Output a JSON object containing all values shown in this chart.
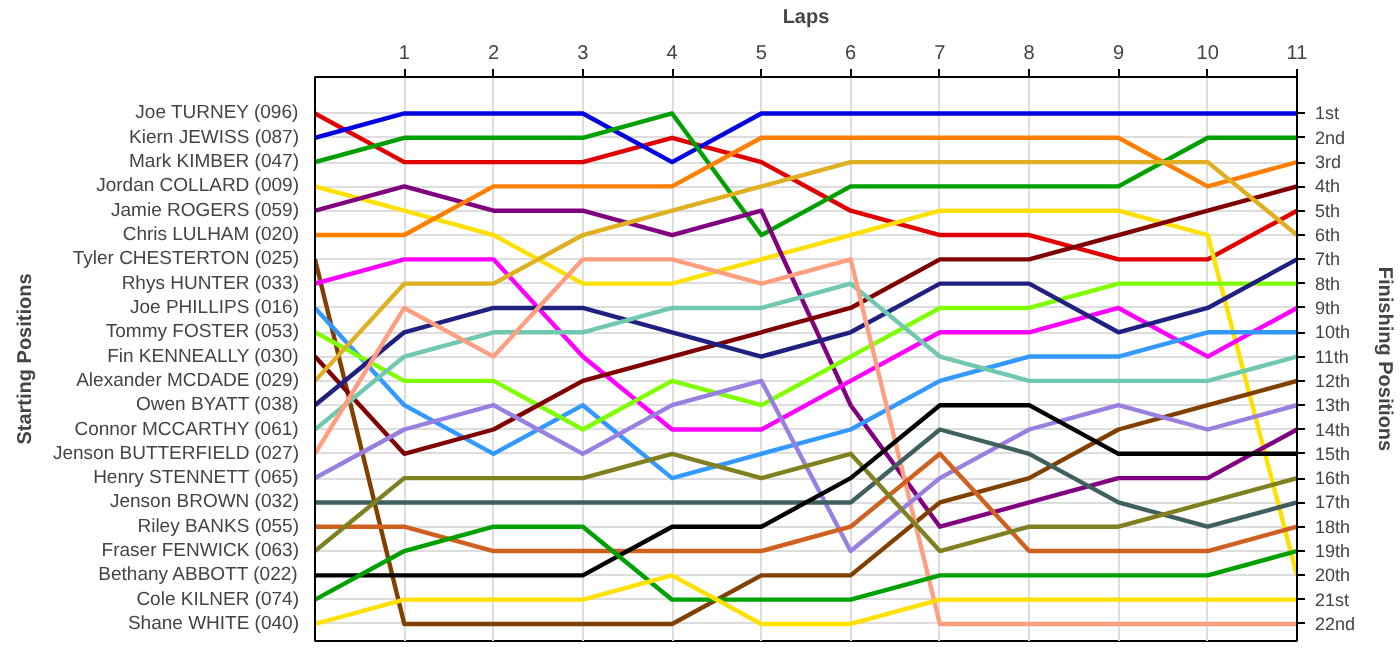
{
  "chart_data": {
    "type": "line",
    "xlabel": "Laps",
    "ylabel": "Finishing Positions",
    "annotations": [
      "Starting Positions"
    ],
    "x": [
      0,
      1,
      2,
      3,
      4,
      5,
      6,
      7,
      8,
      9,
      10,
      11
    ],
    "xlim": [
      0,
      11
    ],
    "xticks": [
      1,
      2,
      3,
      4,
      5,
      6,
      7,
      8,
      9,
      10,
      11
    ],
    "ylim": [
      22.7,
      -0.5
    ],
    "yticks": [
      {
        "value": 1,
        "label": "1st"
      },
      {
        "value": 2,
        "label": "2nd"
      },
      {
        "value": 3,
        "label": "3rd"
      },
      {
        "value": 4,
        "label": "4th"
      },
      {
        "value": 5,
        "label": "5th"
      },
      {
        "value": 6,
        "label": "6th"
      },
      {
        "value": 7,
        "label": "7th"
      },
      {
        "value": 8,
        "label": "8th"
      },
      {
        "value": 9,
        "label": "9th"
      },
      {
        "value": 10,
        "label": "10th"
      },
      {
        "value": 11,
        "label": "11th"
      },
      {
        "value": 12,
        "label": "12th"
      },
      {
        "value": 13,
        "label": "13th"
      },
      {
        "value": 14,
        "label": "14th"
      },
      {
        "value": 15,
        "label": "15th"
      },
      {
        "value": 16,
        "label": "16th"
      },
      {
        "value": 17,
        "label": "17th"
      },
      {
        "value": 18,
        "label": "18th"
      },
      {
        "value": 19,
        "label": "19th"
      },
      {
        "value": 20,
        "label": "20th"
      },
      {
        "value": 21,
        "label": "21st"
      },
      {
        "value": 22,
        "label": "22nd"
      }
    ],
    "grid": true,
    "marker": "none",
    "line_style": "solid",
    "series": [
      {
        "name": "Joe TURNEY (096)",
        "color": "#e00000",
        "values": [
          1,
          3,
          3,
          3,
          2,
          3,
          5,
          6,
          6,
          7,
          7,
          5
        ]
      },
      {
        "name": "Kiern JEWISS (087)",
        "color": "#0000e0",
        "values": [
          2,
          1,
          1,
          1,
          3,
          1,
          1,
          1,
          1,
          1,
          1,
          1
        ]
      },
      {
        "name": "Mark KIMBER (047)",
        "color": "#00a000",
        "values": [
          3,
          2,
          2,
          2,
          1,
          6,
          4,
          4,
          4,
          4,
          2,
          2
        ]
      },
      {
        "name": "Jordan COLLARD (009)",
        "color": "#ffe000",
        "values": [
          4,
          5,
          6,
          8,
          8,
          7,
          6,
          5,
          5,
          5,
          6,
          20
        ]
      },
      {
        "name": "Jamie ROGERS (059)",
        "color": "#800080",
        "values": [
          5,
          4,
          5,
          5,
          6,
          5,
          13,
          18,
          17,
          16,
          16,
          14
        ]
      },
      {
        "name": "Chris LULHAM (020)",
        "color": "#ff8000",
        "values": [
          6,
          6,
          4,
          4,
          4,
          2,
          2,
          2,
          2,
          2,
          4,
          3
        ]
      },
      {
        "name": "Tyler CHESTERTON (025)",
        "color": "#804000",
        "values": [
          7,
          22,
          22,
          22,
          22,
          20,
          20,
          17,
          16,
          14,
          13,
          12
        ]
      },
      {
        "name": "Rhys HUNTER (033)",
        "color": "#ff00ff",
        "values": [
          8,
          7,
          7,
          11,
          14,
          14,
          12,
          10,
          10,
          9,
          11,
          9
        ]
      },
      {
        "name": "Joe PHILLIPS (016)",
        "color": "#3399ff",
        "values": [
          9,
          13,
          15,
          13,
          16,
          15,
          14,
          12,
          11,
          11,
          10,
          10
        ]
      },
      {
        "name": "Tommy FOSTER (053)",
        "color": "#80ff00",
        "values": [
          10,
          12,
          12,
          14,
          12,
          13,
          11,
          9,
          9,
          8,
          8,
          8
        ]
      },
      {
        "name": "Fin KENNEALLY (030)",
        "color": "#800000",
        "values": [
          11,
          15,
          14,
          12,
          11,
          10,
          9,
          7,
          7,
          6,
          5,
          4
        ]
      },
      {
        "name": "Alexander MCDADE (029)",
        "color": "#e0b020",
        "values": [
          12,
          8,
          8,
          6,
          5,
          4,
          3,
          3,
          3,
          3,
          3,
          6
        ]
      },
      {
        "name": "Owen BYATT (038)",
        "color": "#202080",
        "values": [
          13,
          10,
          9,
          9,
          10,
          11,
          10,
          8,
          8,
          10,
          9,
          7
        ]
      },
      {
        "name": "Connor MCCARTHY (061)",
        "color": "#70c8b0",
        "values": [
          14,
          11,
          10,
          10,
          9,
          9,
          8,
          11,
          12,
          12,
          12,
          11
        ]
      },
      {
        "name": "Jenson BUTTERFIELD (027)",
        "color": "#ff9f80",
        "values": [
          15,
          9,
          11,
          7,
          7,
          8,
          7,
          22,
          22,
          22,
          22,
          22
        ]
      },
      {
        "name": "Henry STENNETT (065)",
        "color": "#9980e0",
        "values": [
          16,
          14,
          13,
          15,
          13,
          12,
          19,
          16,
          14,
          13,
          14,
          13
        ]
      },
      {
        "name": "Jenson BROWN (032)",
        "color": "#406060",
        "values": [
          17,
          17,
          17,
          17,
          17,
          17,
          17,
          14,
          15,
          17,
          18,
          17
        ]
      },
      {
        "name": "Riley BANKS (055)",
        "color": "#d06020",
        "values": [
          18,
          18,
          19,
          19,
          19,
          19,
          18,
          15,
          19,
          19,
          19,
          18
        ]
      },
      {
        "name": "Fraser FENWICK (063)",
        "color": "#808020",
        "values": [
          19,
          16,
          16,
          16,
          15,
          16,
          15,
          19,
          18,
          18,
          17,
          16
        ]
      },
      {
        "name": "Bethany ABBOTT (022)",
        "color": "#000000",
        "values": [
          20,
          20,
          20,
          20,
          18,
          18,
          16,
          13,
          13,
          15,
          15,
          15
        ]
      },
      {
        "name": "Cole KILNER (074)",
        "color": "#00a000",
        "values": [
          21,
          19,
          18,
          18,
          21,
          21,
          21,
          20,
          20,
          20,
          20,
          19
        ]
      },
      {
        "name": "Shane WHITE (040)",
        "color": "#ffe000",
        "values": [
          22,
          21,
          21,
          21,
          20,
          22,
          22,
          21,
          21,
          21,
          21,
          21
        ]
      }
    ]
  }
}
